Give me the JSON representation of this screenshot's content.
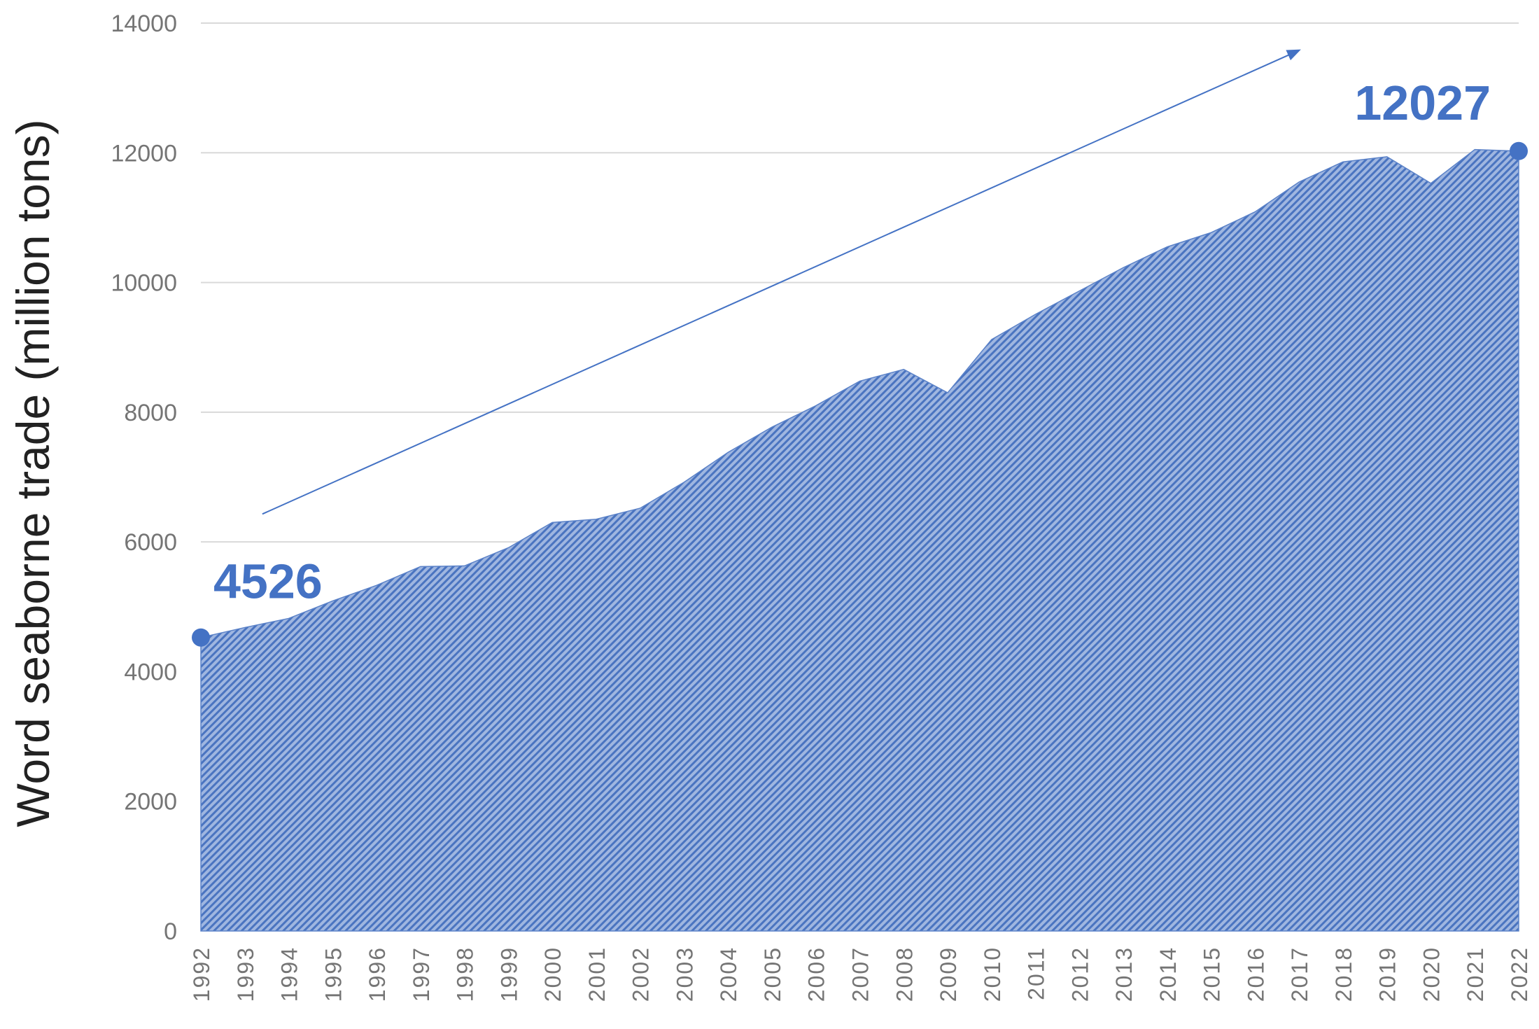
{
  "chart_data": {
    "type": "area",
    "ylabel": "Word seaborne trade (million tons)",
    "xlabel": "",
    "title": "",
    "ylim": [
      0,
      14000
    ],
    "yticks": [
      "0",
      "2000",
      "4000",
      "6000",
      "8000",
      "10000",
      "12000",
      "14000"
    ],
    "grid": "horizontal",
    "categories": [
      "1992",
      "1993",
      "1994",
      "1995",
      "1996",
      "1997",
      "1998",
      "1999",
      "2000",
      "2001",
      "2002",
      "2003",
      "2004",
      "2005",
      "2006",
      "2007",
      "2008",
      "2009",
      "2010",
      "2011",
      "2012",
      "2013",
      "2014",
      "2015",
      "2016",
      "2017",
      "2018",
      "2019",
      "2020",
      "2021",
      "2022"
    ],
    "values": [
      4526,
      4680,
      4820,
      5090,
      5330,
      5620,
      5630,
      5910,
      6300,
      6350,
      6520,
      6920,
      7380,
      7770,
      8100,
      8480,
      8660,
      8300,
      9120,
      9510,
      9870,
      10230,
      10550,
      10770,
      11090,
      11550,
      11860,
      11940,
      11530,
      12050,
      12027
    ],
    "annotations": [
      {
        "label": "4526",
        "year": "1992",
        "value": 4526
      },
      {
        "label": "12027",
        "year": "2022",
        "value": 12027
      }
    ],
    "trend_arrow": {
      "from": {
        "year": 1993.4,
        "value": 6430
      },
      "to": {
        "year": 2017.0,
        "value": 13580
      }
    },
    "colors": {
      "area_fill": "#8faadc",
      "area_hatch": "#4472c4",
      "accent": "#4472c4",
      "grid": "#d9d9d9",
      "tick": "#757575",
      "ylabel": "#222222"
    }
  }
}
